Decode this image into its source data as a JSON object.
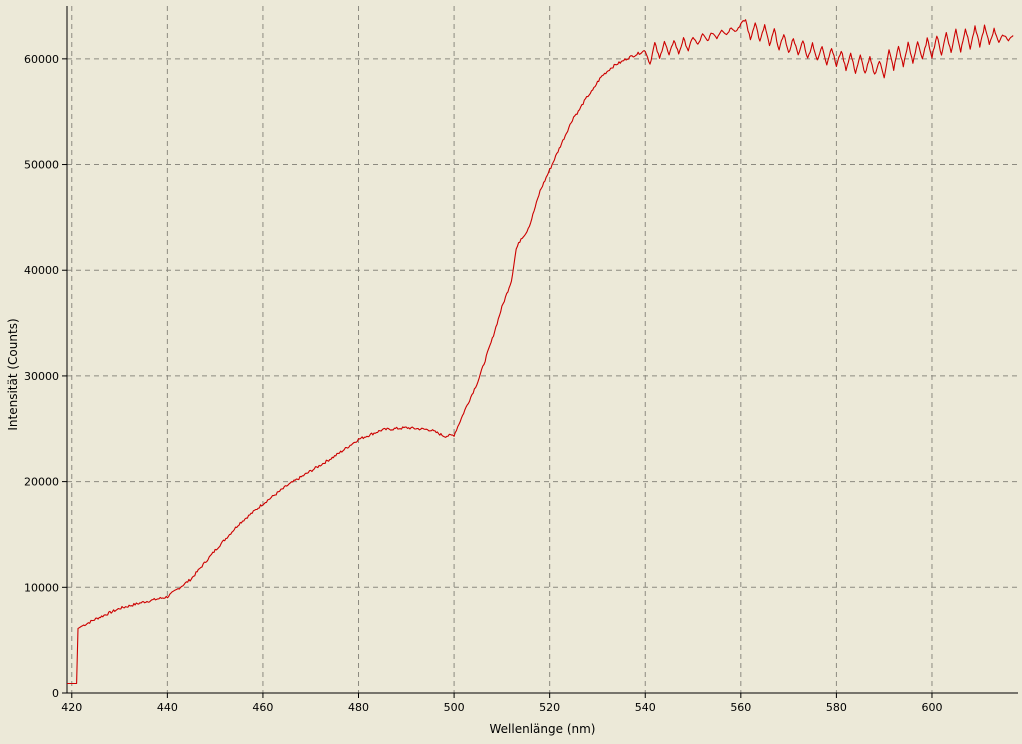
{
  "chart_data": {
    "type": "line",
    "xlabel": "Wellenlänge (nm)",
    "ylabel": "Intensität (Counts)",
    "xlim": [
      419,
      618
    ],
    "ylim": [
      0,
      65000
    ],
    "x_ticks": [
      420,
      440,
      460,
      480,
      500,
      520,
      540,
      560,
      580,
      600
    ],
    "y_ticks": [
      0,
      10000,
      20000,
      30000,
      40000,
      50000,
      60000
    ],
    "grid": true,
    "legend": "none",
    "background_color": "#ece9d8",
    "line_color": "#cc0000",
    "series": [
      {
        "x": [
          419,
          420,
          421,
          421.3,
          422,
          425,
          430,
          435,
          440,
          445,
          450,
          455,
          460,
          465,
          470,
          475,
          480,
          485,
          490,
          495,
          498,
          500,
          502,
          505,
          508,
          510,
          512,
          513,
          514,
          515,
          516,
          517,
          518,
          519,
          520,
          521,
          522,
          523,
          524,
          525,
          526,
          527,
          528,
          529,
          530,
          531,
          532,
          533,
          534,
          535,
          536,
          537,
          538,
          539,
          540,
          541,
          542,
          543,
          544,
          545,
          546,
          547,
          548,
          549,
          550,
          551,
          552,
          553,
          554,
          555,
          556,
          557,
          558,
          559,
          560,
          561,
          562,
          563,
          564,
          565,
          566,
          567,
          568,
          569,
          570,
          571,
          572,
          573,
          574,
          575,
          576,
          577,
          578,
          579,
          580,
          581,
          582,
          583,
          584,
          585,
          586,
          587,
          588,
          589,
          590,
          591,
          592,
          593,
          594,
          595,
          596,
          597,
          598,
          599,
          600,
          601,
          602,
          603,
          604,
          605,
          606,
          607,
          608,
          609,
          610,
          611,
          612,
          613,
          614,
          615,
          616,
          617
        ],
        "y": [
          900,
          900,
          900,
          6100,
          6300,
          7000,
          8000,
          8600,
          9100,
          10800,
          13500,
          16000,
          17900,
          19600,
          21000,
          22400,
          24000,
          24900,
          25100,
          24900,
          24300,
          24400,
          26500,
          29500,
          33500,
          36500,
          39000,
          42000,
          43000,
          43500,
          44500,
          46000,
          47500,
          48500,
          49500,
          50500,
          51500,
          52500,
          53500,
          54500,
          55000,
          55800,
          56500,
          57000,
          57800,
          58400,
          58800,
          59200,
          59500,
          59700,
          60000,
          60200,
          60400,
          60600,
          60800,
          59500,
          61500,
          60000,
          61700,
          60300,
          61800,
          60500,
          61900,
          60800,
          62100,
          61300,
          62300,
          61700,
          62500,
          62000,
          62800,
          62300,
          63000,
          62600,
          63300,
          63700,
          61800,
          63500,
          61600,
          63200,
          61200,
          62800,
          60800,
          62400,
          60500,
          62000,
          60300,
          61800,
          60000,
          61500,
          59800,
          61200,
          59500,
          61100,
          59300,
          60800,
          59000,
          60500,
          58700,
          60300,
          58600,
          60100,
          58500,
          59800,
          58300,
          60800,
          59000,
          61200,
          59300,
          61500,
          59600,
          61700,
          59900,
          61900,
          60200,
          62200,
          60400,
          62500,
          60600,
          62800,
          60700,
          62900,
          61000,
          63000,
          61200,
          63100,
          61400,
          62800,
          61600,
          62300,
          61800,
          62200
        ]
      }
    ]
  }
}
